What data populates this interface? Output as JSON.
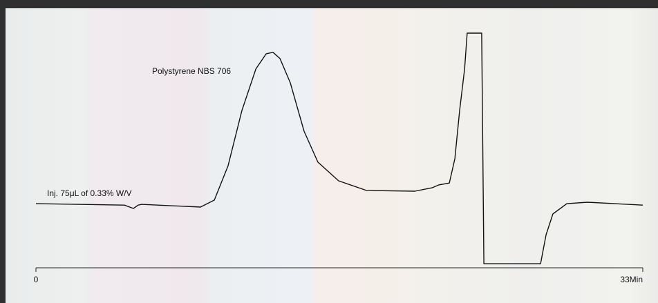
{
  "chart_data": {
    "type": "line",
    "annotations": [
      "Polystyrene NBS 706",
      "Inj. 75μL of 0.33% W/V"
    ],
    "x": [
      0,
      4.81,
      5.3,
      5.56,
      5.75,
      8.95,
      9.7,
      10.45,
      11.2,
      11.96,
      12.52,
      12.89,
      13.27,
      13.83,
      14.58,
      15.33,
      16.46,
      17.97,
      20.6,
      21.54,
      21.91,
      22.48,
      22.78,
      23.04,
      23.31,
      23.45,
      24.24,
      24.36,
      27.44,
      27.74,
      28.11,
      28.87,
      29.99,
      33
    ],
    "series": [
      {
        "color": "#111111",
        "values": [
          26.7,
          26.1,
          24.7,
          26.1,
          26.4,
          25.3,
          28.2,
          42.5,
          65.5,
          82.8,
          89.1,
          89.7,
          87.1,
          77.0,
          56.9,
          44.0,
          36.2,
          32.2,
          31.9,
          33.3,
          34.5,
          35.3,
          45.4,
          65.5,
          82.8,
          97.7,
          97.7,
          1.7,
          1.7,
          13.8,
          22.4,
          26.7,
          27.3,
          26.1
        ]
      }
    ],
    "xlim": [
      0,
      33
    ],
    "xticks": [
      0,
      {
        "value": 33,
        "label": "33Min"
      }
    ],
    "ylim": [
      0,
      100
    ]
  }
}
